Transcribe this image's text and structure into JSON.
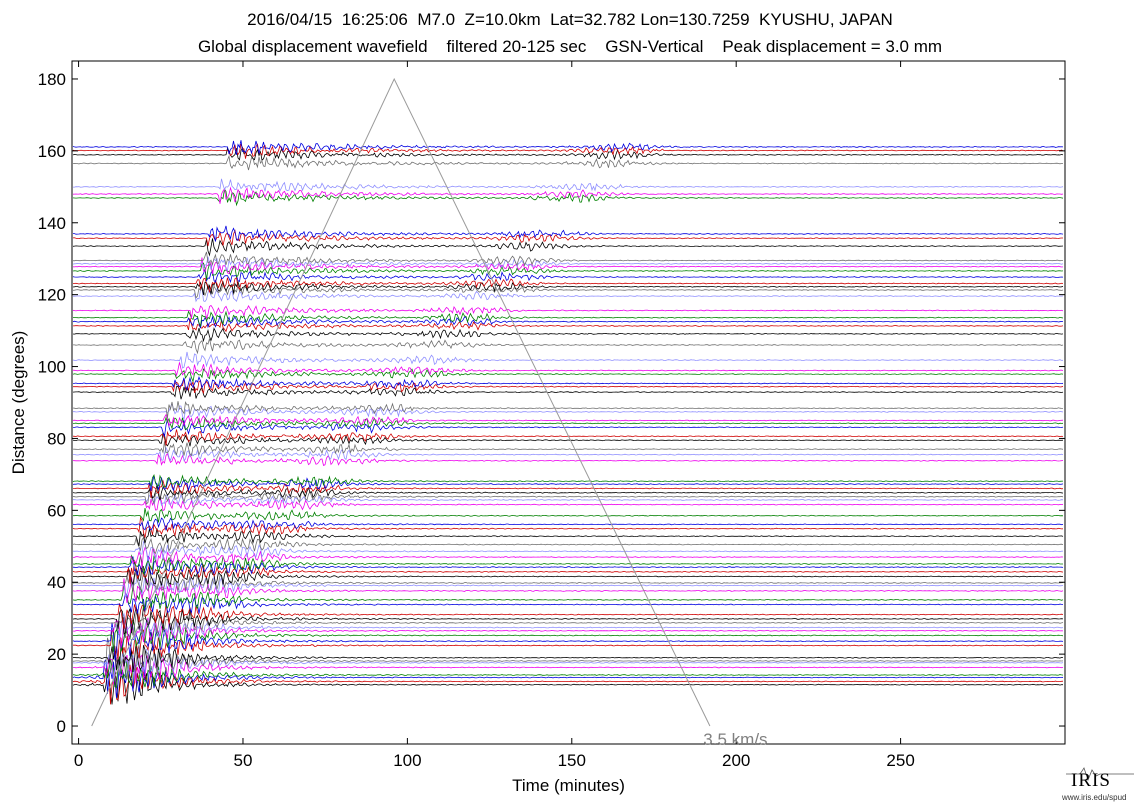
{
  "header": {
    "line1": "2016/04/15  16:25:06  M7.0  Z=10.0km  Lat=32.782 Lon=130.7259  KYUSHU, JAPAN",
    "line2": "Global displacement wavefield    filtered 20-125 sec    GSN-Vertical    Peak displacement = 3.0 mm"
  },
  "logo": {
    "text": "IRIS",
    "url": "www.iris.edu/spud"
  },
  "colors": {
    "axis": "#000000",
    "guide": "#9a9a9a",
    "annotation": "#808080"
  },
  "chart_data": {
    "type": "line",
    "xlabel": "Time (minutes)",
    "ylabel": "Distance (degrees)",
    "xlim": [
      -2,
      300
    ],
    "ylim": [
      -5,
      185
    ],
    "xticks": [
      0,
      50,
      100,
      150,
      200,
      250
    ],
    "yticks": [
      0,
      20,
      40,
      60,
      80,
      100,
      120,
      140,
      160,
      180
    ],
    "annotation": {
      "text": "3.5 km/s",
      "x": 190,
      "y": -2
    },
    "guide_line": {
      "points": [
        [
          4,
          0
        ],
        [
          96,
          180
        ],
        [
          192,
          0
        ]
      ]
    },
    "palette": [
      "#000000",
      "#d00000",
      "#0000e0",
      "#008000",
      "#ee00ee",
      "#9090ff",
      "#707070"
    ],
    "traces": {
      "distances": [
        11.5,
        12.4,
        13.5,
        14.2,
        16.3,
        17.6,
        18.1,
        19.0,
        22.4,
        23.6,
        25.2,
        26.5,
        27.4,
        28.7,
        29.8,
        31.0,
        33.8,
        35.1,
        37.6,
        39.1,
        39.8,
        41.6,
        42.9,
        44.2,
        45.1,
        47.0,
        48.6,
        50.5,
        52.8,
        54.9,
        56.1,
        58.5,
        61.6,
        62.9,
        63.8,
        64.9,
        66.1,
        67.3,
        68.1,
        73.8,
        75.5,
        77.0,
        79.5,
        80.6,
        83.1,
        84.2,
        85.0,
        87.4,
        88.4,
        92.9,
        94.4,
        95.3,
        97.9,
        98.9,
        101.8,
        106.0,
        109.1,
        111.3,
        112.5,
        113.6,
        115.6,
        119.6,
        121.3,
        122.2,
        123.1,
        124.9,
        126.6,
        127.8,
        128.6,
        129.5,
        133.5,
        135.7,
        136.9,
        146.9,
        148.0,
        150.0,
        156.5,
        158.9,
        160.1,
        161.1
      ],
      "arrival_onset_deg_per_min": 3.86,
      "peak_displacement_mm": 3.0
    }
  }
}
